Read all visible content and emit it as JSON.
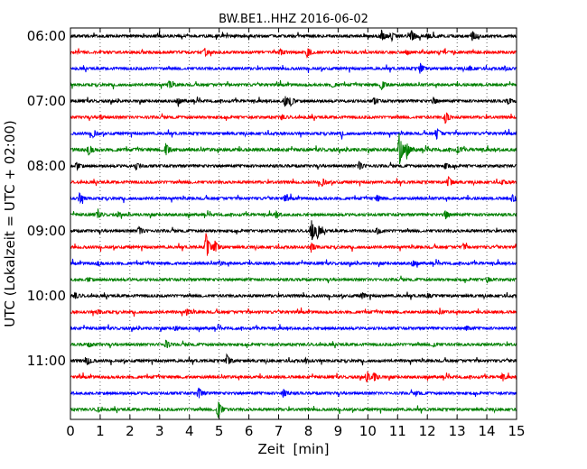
{
  "chart_data": {
    "type": "line",
    "title": "BW.BE1..HHZ 2016-06-02",
    "xlabel": "Zeit  [min]",
    "ylabel": "UTC (Lokalzeit = UTC + 02:00)",
    "xlim": [
      0,
      15
    ],
    "x_ticks": [
      "0",
      "1",
      "2",
      "3",
      "4",
      "5",
      "6",
      "7",
      "8",
      "9",
      "10",
      "11",
      "12",
      "13",
      "14",
      "15"
    ],
    "y_ticks": [
      "06:00",
      "07:00",
      "08:00",
      "09:00",
      "10:00",
      "11:00"
    ],
    "grid": "vertical dotted",
    "color_cycle": [
      "#000000",
      "#ff0000",
      "#0000ff",
      "#008000"
    ],
    "traces": [
      {
        "label": "06:00",
        "noise": 1.0,
        "events": [
          [
            3.0,
            0.3
          ],
          [
            10.45,
            5
          ],
          [
            10.8,
            3
          ],
          [
            11.45,
            6
          ],
          [
            12.0,
            2
          ],
          [
            13.5,
            5
          ]
        ]
      },
      {
        "label": "06:15",
        "noise": 1.0,
        "events": [
          [
            4.5,
            4
          ],
          [
            7.05,
            3
          ],
          [
            7.95,
            5
          ],
          [
            11.3,
            2
          ]
        ]
      },
      {
        "label": "06:30",
        "noise": 1.0,
        "events": [
          [
            11.75,
            5
          ],
          [
            13.4,
            2
          ],
          [
            14.6,
            2
          ]
        ]
      },
      {
        "label": "06:45",
        "noise": 1.0,
        "events": [
          [
            3.3,
            4
          ],
          [
            10.45,
            5
          ],
          [
            8.8,
            2
          ]
        ]
      },
      {
        "label": "07:00",
        "noise": 1.0,
        "events": [
          [
            3.6,
            3
          ],
          [
            7.2,
            6
          ],
          [
            7.4,
            4
          ],
          [
            10.2,
            3
          ],
          [
            12.2,
            3
          ],
          [
            14.7,
            3
          ]
        ]
      },
      {
        "label": "07:15",
        "noise": 1.0,
        "events": [
          [
            12.6,
            6
          ],
          [
            7.1,
            2
          ],
          [
            1.0,
            2
          ]
        ]
      },
      {
        "label": "07:30",
        "noise": 1.0,
        "events": [
          [
            0.75,
            4
          ],
          [
            12.3,
            6
          ],
          [
            9.1,
            2
          ]
        ]
      },
      {
        "label": "07:45",
        "noise": 1.2,
        "events": [
          [
            0.6,
            5
          ],
          [
            3.2,
            6
          ],
          [
            11.05,
            18
          ],
          [
            11.3,
            6
          ],
          [
            13.0,
            3
          ]
        ]
      },
      {
        "label": "08:00",
        "noise": 1.0,
        "events": [
          [
            0.2,
            4
          ],
          [
            2.2,
            3
          ],
          [
            9.7,
            4
          ],
          [
            12.6,
            3
          ]
        ]
      },
      {
        "label": "08:15",
        "noise": 1.0,
        "events": [
          [
            8.45,
            4
          ],
          [
            12.7,
            6
          ],
          [
            14.5,
            2
          ]
        ]
      },
      {
        "label": "08:30",
        "noise": 1.0,
        "events": [
          [
            0.3,
            5
          ],
          [
            7.2,
            3
          ],
          [
            10.3,
            3
          ],
          [
            14.85,
            4
          ]
        ]
      },
      {
        "label": "08:45",
        "noise": 1.0,
        "events": [
          [
            0.9,
            3
          ],
          [
            6.9,
            3
          ],
          [
            12.6,
            4
          ],
          [
            1.6,
            2
          ]
        ]
      },
      {
        "label": "09:00",
        "noise": 1.0,
        "events": [
          [
            2.3,
            4
          ],
          [
            8.1,
            12
          ],
          [
            8.3,
            6
          ],
          [
            10.3,
            3
          ]
        ]
      },
      {
        "label": "09:15",
        "noise": 1.0,
        "events": [
          [
            4.55,
            15
          ],
          [
            4.85,
            6
          ],
          [
            8.1,
            4
          ],
          [
            13.2,
            3
          ]
        ]
      },
      {
        "label": "09:30",
        "noise": 1.0,
        "events": [
          [
            0.9,
            2
          ],
          [
            11.5,
            3
          ],
          [
            5.0,
            2
          ]
        ]
      },
      {
        "label": "09:45",
        "noise": 1.0,
        "events": [
          [
            14.0,
            3
          ],
          [
            0.6,
            2
          ]
        ]
      },
      {
        "label": "10:00",
        "noise": 1.0,
        "events": [
          [
            0.15,
            3
          ],
          [
            9.8,
            3
          ],
          [
            12.0,
            2
          ]
        ]
      },
      {
        "label": "10:15",
        "noise": 1.0,
        "events": [
          [
            0.9,
            2
          ],
          [
            3.9,
            3
          ],
          [
            12.4,
            2
          ]
        ]
      },
      {
        "label": "10:30",
        "noise": 1.0,
        "events": [
          [
            3.5,
            2
          ],
          [
            13.3,
            2
          ]
        ]
      },
      {
        "label": "10:45",
        "noise": 1.0,
        "events": [
          [
            3.2,
            4
          ],
          [
            0.6,
            2
          ],
          [
            12.2,
            2
          ]
        ]
      },
      {
        "label": "11:00",
        "noise": 1.0,
        "events": [
          [
            0.55,
            4
          ],
          [
            5.25,
            6
          ],
          [
            7.9,
            2
          ]
        ]
      },
      {
        "label": "11:15",
        "noise": 1.0,
        "events": [
          [
            9.95,
            5
          ],
          [
            10.2,
            4
          ],
          [
            14.5,
            3
          ]
        ]
      },
      {
        "label": "11:30",
        "noise": 1.0,
        "events": [
          [
            4.3,
            6
          ],
          [
            7.15,
            4
          ],
          [
            11.6,
            2
          ]
        ]
      },
      {
        "label": "11:45",
        "noise": 1.0,
        "events": [
          [
            4.95,
            10
          ],
          [
            0.9,
            2
          ]
        ]
      }
    ]
  }
}
